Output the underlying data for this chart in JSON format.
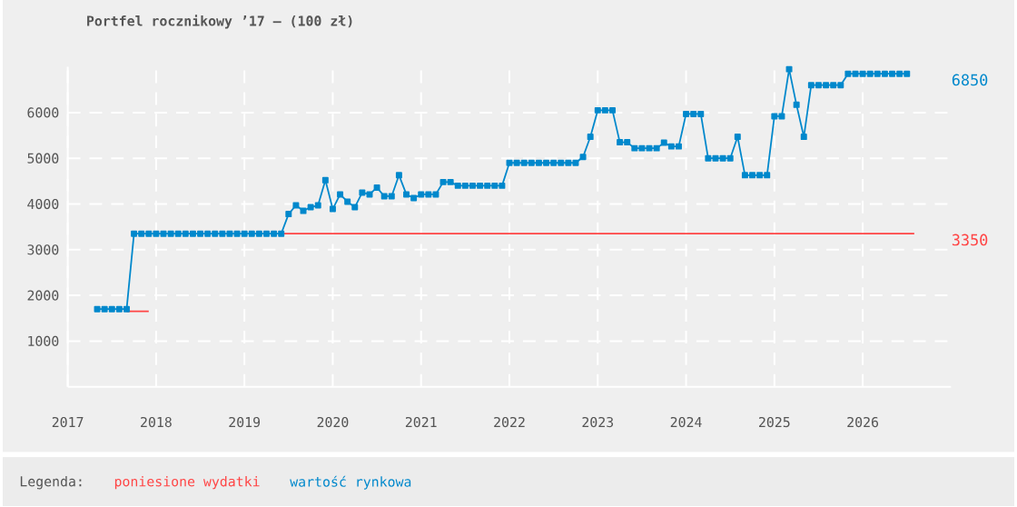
{
  "chart_data": {
    "type": "line",
    "title": "Portfel rocznikowy ’17 – (100 zł)",
    "legend_title": "Legenda:",
    "legend": "bottom",
    "grid": true,
    "xlim": [
      "2017",
      "2027"
    ],
    "xticks": [
      "2017",
      "2018",
      "2019",
      "2020",
      "2021",
      "2022",
      "2023",
      "2024",
      "2025",
      "2026"
    ],
    "ylim": [
      0,
      7000
    ],
    "yticks": [
      1000,
      2000,
      3000,
      4000,
      5000,
      6000
    ],
    "annotations": [
      {
        "text": "6850",
        "x": "2026-07",
        "y": 6850
      },
      {
        "text": "3350",
        "x": "2026-08",
        "y": 3350
      }
    ],
    "series": [
      {
        "name": "poniesione wydatki",
        "color": "#ff4444",
        "marker": "none",
        "x": [
          "2017-09",
          "2017-12",
          "2018-06",
          "2019-06",
          "2026-08"
        ],
        "values": [
          1650,
          1650,
          null,
          3350,
          3350
        ]
      },
      {
        "name": "wartość rynkowa",
        "color": "#0088cc",
        "marker": "square",
        "x": [
          "2017-05",
          "2017-06",
          "2017-07",
          "2017-08",
          "2017-09",
          "2017-10",
          "2017-11",
          "2017-12",
          "2018-01",
          "2018-02",
          "2018-03",
          "2018-04",
          "2018-05",
          "2018-06",
          "2018-07",
          "2018-08",
          "2018-09",
          "2018-10",
          "2018-11",
          "2018-12",
          "2019-01",
          "2019-02",
          "2019-03",
          "2019-04",
          "2019-05",
          "2019-06",
          "2019-07",
          "2019-08",
          "2019-09",
          "2019-10",
          "2019-11",
          "2019-12",
          "2020-01",
          "2020-02",
          "2020-03",
          "2020-04",
          "2020-05",
          "2020-06",
          "2020-07",
          "2020-08",
          "2020-09",
          "2020-10",
          "2020-11",
          "2020-12",
          "2021-01",
          "2021-02",
          "2021-03",
          "2021-04",
          "2021-05",
          "2021-06",
          "2021-07",
          "2021-08",
          "2021-09",
          "2021-10",
          "2021-11",
          "2021-12",
          "2022-01",
          "2022-02",
          "2022-03",
          "2022-04",
          "2022-05",
          "2022-06",
          "2022-07",
          "2022-08",
          "2022-09",
          "2022-10",
          "2022-11",
          "2022-12",
          "2023-01",
          "2023-02",
          "2023-03",
          "2023-04",
          "2023-05",
          "2023-06",
          "2023-07",
          "2023-08",
          "2023-09",
          "2023-10",
          "2023-11",
          "2023-12",
          "2024-01",
          "2024-02",
          "2024-03",
          "2024-04",
          "2024-05",
          "2024-06",
          "2024-07",
          "2024-08",
          "2024-09",
          "2024-10",
          "2024-11",
          "2024-12",
          "2025-01",
          "2025-02",
          "2025-03",
          "2025-04",
          "2025-05",
          "2025-06",
          "2025-07",
          "2025-08",
          "2025-09",
          "2025-10",
          "2025-11",
          "2025-12",
          "2026-01",
          "2026-02",
          "2026-03",
          "2026-04",
          "2026-05",
          "2026-06",
          "2026-07"
        ],
        "values": [
          1700,
          1700,
          1700,
          1700,
          1700,
          3350,
          3350,
          3350,
          3350,
          3350,
          3350,
          3350,
          3350,
          3350,
          3350,
          3350,
          3350,
          3350,
          3350,
          3350,
          3350,
          3350,
          3350,
          3350,
          3350,
          3350,
          3780,
          3970,
          3850,
          3930,
          3970,
          4520,
          3890,
          4210,
          4050,
          3930,
          4250,
          4210,
          4360,
          4170,
          4170,
          4630,
          4210,
          4130,
          4210,
          4210,
          4210,
          4480,
          4480,
          4400,
          4400,
          4400,
          4400,
          4400,
          4400,
          4400,
          4900,
          4900,
          4900,
          4900,
          4900,
          4900,
          4900,
          4900,
          4900,
          4900,
          5030,
          5470,
          6050,
          6050,
          6050,
          5350,
          5350,
          5220,
          5220,
          5220,
          5220,
          5340,
          5260,
          5260,
          5970,
          5970,
          5970,
          5000,
          5000,
          5000,
          5000,
          5470,
          4630,
          4630,
          4630,
          4630,
          5920,
          5920,
          6950,
          6170,
          5470,
          6600,
          6600,
          6600,
          6600,
          6600,
          6850,
          6850,
          6850,
          6850,
          6850,
          6850,
          6850,
          6850,
          6850
        ]
      }
    ]
  }
}
